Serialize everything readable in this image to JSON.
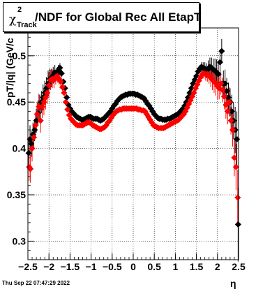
{
  "title": {
    "chi": "χ",
    "superscript": "2",
    "subscript": "Track",
    "main": "/NDF for Global Rec All EtapT"
  },
  "datestamp": "Thu Sep 22 07:47:29 2022",
  "chart_data": {
    "type": "scatter",
    "xlabel": "η",
    "ylabel": "pT/|q| (GeV/c",
    "xlim": [
      -2.5,
      2.5
    ],
    "ylim": [
      0.28,
      0.53
    ],
    "grid": true,
    "x_ticks": [
      -2.5,
      -2,
      -1.5,
      -1,
      -0.5,
      0,
      0.5,
      1,
      1.5,
      2,
      2.5
    ],
    "x_tick_labels": [
      "−2.5",
      "−2",
      "−1.5",
      "−1",
      "−0.5",
      "0",
      "0.5",
      "1",
      "1.5",
      "2",
      "2.5"
    ],
    "y_ticks": [
      0.3,
      0.35,
      0.4,
      0.45,
      0.5
    ],
    "y_tick_labels": [
      "0.3",
      "0.35",
      "0.4",
      "0.45",
      "0.5"
    ],
    "series": [
      {
        "color": "#000000",
        "x": [
          -2.48,
          -2.45,
          -2.42,
          -2.38,
          -2.34,
          -2.3,
          -2.26,
          -2.22,
          -2.18,
          -2.14,
          -2.1,
          -2.06,
          -2.02,
          -1.98,
          -1.94,
          -1.9,
          -1.86,
          -1.82,
          -1.78,
          -1.74,
          -1.7,
          -1.66,
          -1.62,
          -1.58,
          -1.54,
          -1.5,
          -1.46,
          -1.42,
          -1.38,
          -1.34,
          -1.3,
          -1.26,
          -1.22,
          -1.18,
          -1.14,
          -1.1,
          -1.06,
          -1.02,
          -0.98,
          -0.94,
          -0.9,
          -0.86,
          -0.82,
          -0.78,
          -0.74,
          -0.7,
          -0.66,
          -0.62,
          -0.58,
          -0.54,
          -0.5,
          -0.46,
          -0.42,
          -0.38,
          -0.34,
          -0.3,
          -0.26,
          -0.22,
          -0.18,
          -0.14,
          -0.1,
          -0.06,
          -0.02,
          0.02,
          0.06,
          0.1,
          0.14,
          0.18,
          0.22,
          0.26,
          0.3,
          0.34,
          0.38,
          0.42,
          0.46,
          0.5,
          0.54,
          0.58,
          0.62,
          0.66,
          0.7,
          0.74,
          0.78,
          0.82,
          0.86,
          0.9,
          0.94,
          0.98,
          1.02,
          1.06,
          1.1,
          1.14,
          1.18,
          1.22,
          1.26,
          1.3,
          1.34,
          1.38,
          1.42,
          1.46,
          1.5,
          1.54,
          1.58,
          1.62,
          1.66,
          1.7,
          1.74,
          1.78,
          1.82,
          1.86,
          1.9,
          1.94,
          1.98,
          2.02,
          2.06,
          2.1,
          2.14,
          2.18,
          2.22,
          2.26,
          2.3,
          2.34,
          2.38,
          2.42,
          2.46,
          2.49
        ],
        "y": [
          0.395,
          0.41,
          0.405,
          0.415,
          0.42,
          0.43,
          0.438,
          0.445,
          0.45,
          0.455,
          0.46,
          0.465,
          0.47,
          0.475,
          0.476,
          0.479,
          0.482,
          0.48,
          0.484,
          0.487,
          0.481,
          0.472,
          0.465,
          0.455,
          0.447,
          0.443,
          0.44,
          0.438,
          0.436,
          0.434,
          0.433,
          0.432,
          0.431,
          0.431,
          0.432,
          0.433,
          0.434,
          0.434,
          0.433,
          0.432,
          0.432,
          0.432,
          0.431,
          0.43,
          0.431,
          0.432,
          0.434,
          0.436,
          0.438,
          0.44,
          0.443,
          0.446,
          0.448,
          0.451,
          0.453,
          0.455,
          0.456,
          0.457,
          0.458,
          0.458,
          0.459,
          0.459,
          0.459,
          0.459,
          0.458,
          0.458,
          0.457,
          0.456,
          0.455,
          0.454,
          0.451,
          0.448,
          0.446,
          0.443,
          0.44,
          0.437,
          0.435,
          0.433,
          0.432,
          0.432,
          0.431,
          0.431,
          0.431,
          0.432,
          0.432,
          0.433,
          0.434,
          0.435,
          0.436,
          0.437,
          0.439,
          0.441,
          0.443,
          0.446,
          0.45,
          0.455,
          0.46,
          0.465,
          0.47,
          0.474,
          0.478,
          0.483,
          0.486,
          0.488,
          0.487,
          0.486,
          0.484,
          0.486,
          0.488,
          0.487,
          0.485,
          0.484,
          0.482,
          0.48,
          0.493,
          0.505,
          0.47,
          0.47,
          0.462,
          0.455,
          0.45,
          0.44,
          0.43,
          0.42,
          0.41,
          0.318
        ],
        "yerr": [
          0.015,
          0.015,
          0.014,
          0.013,
          0.012,
          0.013,
          0.014,
          0.013,
          0.012,
          0.014,
          0.013,
          0.012,
          0.014,
          0.011,
          0.01,
          0.009,
          0.008,
          0.007,
          0.006,
          0.005,
          0.004,
          0.003,
          0.002,
          0.002,
          0.002,
          0.001,
          0.001,
          0.001,
          0.001,
          0.001,
          0.001,
          0.001,
          0.001,
          0.001,
          0.001,
          0.001,
          0.001,
          0.001,
          0.001,
          0.001,
          0.001,
          0.001,
          0.001,
          0.001,
          0.001,
          0.001,
          0.001,
          0.001,
          0.001,
          0.001,
          0.001,
          0.001,
          0.001,
          0.001,
          0.001,
          0.001,
          0.001,
          0.001,
          0.001,
          0.001,
          0.001,
          0.001,
          0.001,
          0.001,
          0.001,
          0.001,
          0.001,
          0.001,
          0.001,
          0.001,
          0.001,
          0.001,
          0.001,
          0.001,
          0.001,
          0.001,
          0.001,
          0.001,
          0.001,
          0.001,
          0.001,
          0.001,
          0.001,
          0.001,
          0.001,
          0.001,
          0.001,
          0.001,
          0.001,
          0.001,
          0.001,
          0.001,
          0.001,
          0.001,
          0.001,
          0.001,
          0.001,
          0.001,
          0.001,
          0.002,
          0.002,
          0.003,
          0.004,
          0.005,
          0.006,
          0.007,
          0.008,
          0.009,
          0.01,
          0.011,
          0.012,
          0.013,
          0.014,
          0.012,
          0.012,
          0.013,
          0.014,
          0.015,
          0.014,
          0.016,
          0.015,
          0.018,
          0.02,
          0.025,
          0.03,
          0.04
        ]
      },
      {
        "color": "#ff0000",
        "x": [
          -2.47,
          -2.44,
          -2.4,
          -2.36,
          -2.32,
          -2.28,
          -2.24,
          -2.2,
          -2.16,
          -2.12,
          -2.08,
          -2.04,
          -2.0,
          -1.96,
          -1.92,
          -1.88,
          -1.84,
          -1.8,
          -1.76,
          -1.72,
          -1.68,
          -1.64,
          -1.6,
          -1.56,
          -1.52,
          -1.48,
          -1.44,
          -1.4,
          -1.36,
          -1.32,
          -1.28,
          -1.24,
          -1.2,
          -1.16,
          -1.12,
          -1.08,
          -1.04,
          -1.0,
          -0.96,
          -0.92,
          -0.88,
          -0.84,
          -0.8,
          -0.76,
          -0.72,
          -0.68,
          -0.64,
          -0.6,
          -0.56,
          -0.52,
          -0.48,
          -0.44,
          -0.4,
          -0.36,
          -0.32,
          -0.28,
          -0.24,
          -0.2,
          -0.16,
          -0.12,
          -0.08,
          -0.04,
          0.0,
          0.04,
          0.08,
          0.12,
          0.16,
          0.2,
          0.24,
          0.28,
          0.32,
          0.36,
          0.4,
          0.44,
          0.48,
          0.52,
          0.56,
          0.6,
          0.64,
          0.68,
          0.72,
          0.76,
          0.8,
          0.84,
          0.88,
          0.92,
          0.96,
          1.0,
          1.04,
          1.08,
          1.12,
          1.16,
          1.2,
          1.24,
          1.28,
          1.32,
          1.36,
          1.4,
          1.44,
          1.48,
          1.52,
          1.56,
          1.6,
          1.64,
          1.68,
          1.72,
          1.76,
          1.8,
          1.84,
          1.88,
          1.92,
          1.96,
          2.0,
          2.04,
          2.08,
          2.12,
          2.16,
          2.2,
          2.24,
          2.28,
          2.32,
          2.36,
          2.4,
          2.44,
          2.48
        ],
        "y": [
          0.38,
          0.378,
          0.4,
          0.412,
          0.425,
          0.437,
          0.445,
          0.43,
          0.445,
          0.45,
          0.455,
          0.46,
          0.468,
          0.474,
          0.475,
          0.474,
          0.477,
          0.478,
          0.475,
          0.472,
          0.466,
          0.46,
          0.45,
          0.442,
          0.436,
          0.432,
          0.43,
          0.428,
          0.426,
          0.425,
          0.425,
          0.425,
          0.425,
          0.426,
          0.427,
          0.428,
          0.428,
          0.427,
          0.425,
          0.424,
          0.423,
          0.422,
          0.421,
          0.421,
          0.422,
          0.423,
          0.425,
          0.428,
          0.43,
          0.433,
          0.436,
          0.438,
          0.44,
          0.441,
          0.442,
          0.442,
          0.443,
          0.443,
          0.443,
          0.443,
          0.443,
          0.443,
          0.443,
          0.443,
          0.443,
          0.442,
          0.442,
          0.441,
          0.441,
          0.44,
          0.437,
          0.434,
          0.431,
          0.428,
          0.425,
          0.424,
          0.423,
          0.422,
          0.422,
          0.422,
          0.422,
          0.423,
          0.424,
          0.425,
          0.426,
          0.427,
          0.428,
          0.429,
          0.43,
          0.431,
          0.433,
          0.435,
          0.437,
          0.44,
          0.444,
          0.448,
          0.452,
          0.456,
          0.46,
          0.465,
          0.469,
          0.473,
          0.477,
          0.48,
          0.481,
          0.48,
          0.48,
          0.479,
          0.476,
          0.474,
          0.472,
          0.47,
          0.467,
          0.465,
          0.47,
          0.463,
          0.456,
          0.447,
          0.44,
          0.45,
          0.43,
          0.42,
          0.39,
          0.38,
          0.347
        ],
        "yerr": [
          0.015,
          0.015,
          0.014,
          0.013,
          0.012,
          0.013,
          0.014,
          0.013,
          0.012,
          0.014,
          0.013,
          0.012,
          0.014,
          0.011,
          0.01,
          0.009,
          0.008,
          0.007,
          0.006,
          0.005,
          0.004,
          0.003,
          0.002,
          0.002,
          0.002,
          0.001,
          0.001,
          0.001,
          0.001,
          0.001,
          0.001,
          0.001,
          0.001,
          0.001,
          0.001,
          0.001,
          0.001,
          0.001,
          0.001,
          0.001,
          0.001,
          0.001,
          0.001,
          0.001,
          0.001,
          0.001,
          0.001,
          0.001,
          0.001,
          0.001,
          0.001,
          0.001,
          0.001,
          0.001,
          0.001,
          0.001,
          0.001,
          0.001,
          0.001,
          0.001,
          0.001,
          0.001,
          0.001,
          0.001,
          0.001,
          0.001,
          0.001,
          0.001,
          0.001,
          0.001,
          0.001,
          0.001,
          0.001,
          0.001,
          0.001,
          0.001,
          0.001,
          0.001,
          0.001,
          0.001,
          0.001,
          0.001,
          0.001,
          0.001,
          0.001,
          0.001,
          0.001,
          0.001,
          0.001,
          0.001,
          0.001,
          0.001,
          0.001,
          0.001,
          0.001,
          0.001,
          0.001,
          0.001,
          0.001,
          0.002,
          0.002,
          0.003,
          0.004,
          0.005,
          0.006,
          0.007,
          0.008,
          0.009,
          0.01,
          0.011,
          0.012,
          0.013,
          0.014,
          0.012,
          0.012,
          0.013,
          0.014,
          0.015,
          0.014,
          0.016,
          0.015,
          0.018,
          0.02,
          0.025,
          0.03
        ]
      }
    ]
  }
}
